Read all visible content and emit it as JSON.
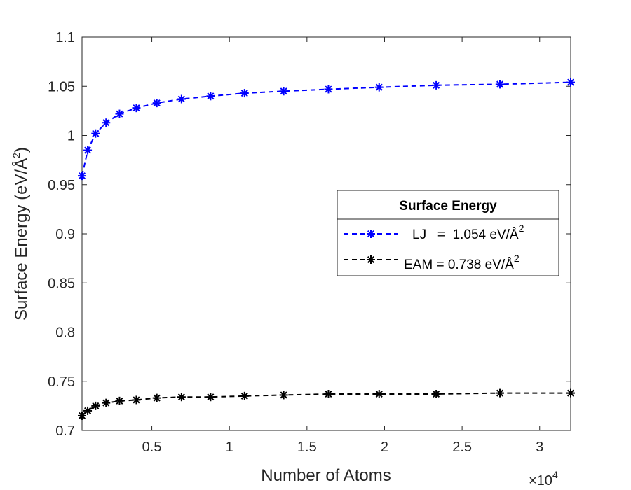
{
  "chart_data": {
    "type": "line",
    "xlabel": "Number of Atoms",
    "ylabel": "Surface Energy (eV/Å",
    "ylabel_exponent": "2",
    "ylabel_close": ")",
    "x_multiplier_label": "×10",
    "x_multiplier_exponent": "4",
    "xlim": [
      500,
      32000
    ],
    "ylim": [
      0.7,
      1.1
    ],
    "xticks": [
      5000,
      10000,
      15000,
      20000,
      25000,
      30000
    ],
    "xtick_labels": [
      "0.5",
      "1",
      "1.5",
      "2",
      "2.5",
      "3"
    ],
    "yticks": [
      0.7,
      0.75,
      0.8,
      0.85,
      0.9,
      0.95,
      1.0,
      1.05,
      1.1
    ],
    "ytick_labels": [
      "0.7",
      "0.75",
      "0.8",
      "0.85",
      "0.9",
      "0.95",
      "1",
      "1.05",
      "1.1"
    ],
    "grid": false,
    "legend": {
      "title": "Surface Energy",
      "placement": "right-middle",
      "entries": [
        {
          "text": "LJ   =  1.054 eV/Å",
          "exponent": "2"
        },
        {
          "text": "EAM = 0.738 eV/Å",
          "exponent": "2"
        }
      ]
    },
    "series": [
      {
        "color": "#0000ff",
        "line_style": "dashed",
        "marker": "asterisk",
        "x": [
          500,
          864,
          1372,
          2048,
          2916,
          4000,
          5324,
          6912,
          8788,
          10976,
          13500,
          16384,
          19652,
          23328,
          27436,
          32000
        ],
        "y": [
          0.959,
          0.985,
          1.002,
          1.013,
          1.022,
          1.028,
          1.033,
          1.037,
          1.04,
          1.043,
          1.045,
          1.047,
          1.049,
          1.051,
          1.052,
          1.054
        ]
      },
      {
        "color": "#000000",
        "line_style": "dashed",
        "marker": "asterisk",
        "x": [
          500,
          864,
          1372,
          2048,
          2916,
          4000,
          5324,
          6912,
          8788,
          10976,
          13500,
          16384,
          19652,
          23328,
          27436,
          32000
        ],
        "y": [
          0.715,
          0.72,
          0.725,
          0.728,
          0.73,
          0.731,
          0.733,
          0.734,
          0.734,
          0.735,
          0.736,
          0.737,
          0.737,
          0.737,
          0.738,
          0.738
        ]
      }
    ]
  }
}
